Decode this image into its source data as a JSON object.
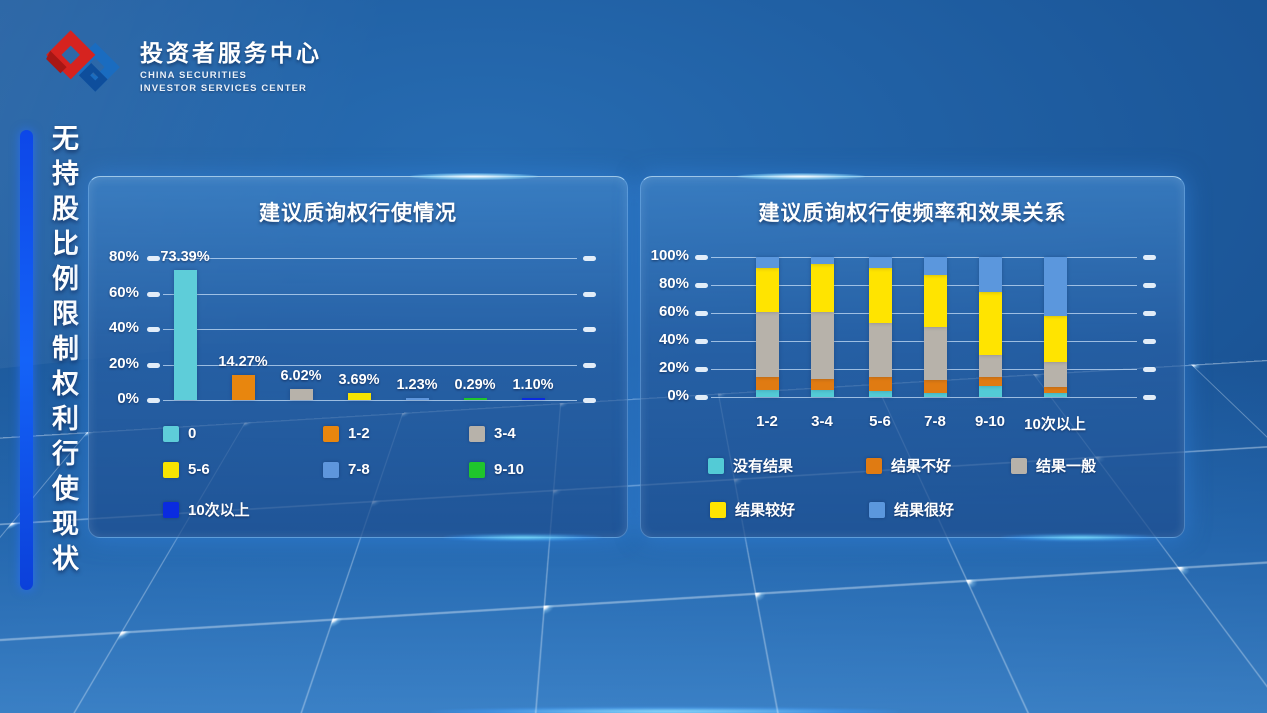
{
  "brand": {
    "title": "投资者服务中心",
    "subtitle_line1": "CHINA SECURITIES",
    "subtitle_line2": "INVESTOR SERVICES CENTER"
  },
  "sidebar": {
    "vertical_title": "无持股比例限制权利行使现状"
  },
  "colors": {
    "accent_bar": "#0D47E8",
    "panel_blue": "#2A62A7",
    "logo_red": "#D6231F",
    "logo_blue": "#1A6CC0"
  },
  "chart_data": [
    {
      "type": "bar",
      "title": "建议质询权行使情况",
      "categories": [
        "0",
        "1-2",
        "3-4",
        "5-6",
        "7-8",
        "9-10",
        "10次以上"
      ],
      "values": [
        73.39,
        14.27,
        6.02,
        3.69,
        1.23,
        0.29,
        1.1
      ],
      "value_labels": [
        "73.39%",
        "14.27%",
        "6.02%",
        "3.69%",
        "1.23%",
        "0.29%",
        "1.10%"
      ],
      "colors": [
        "#5ECDD9",
        "#E8860E",
        "#B7B2AA",
        "#F7E301",
        "#5E96DC",
        "#1FC52C",
        "#0A2BE0"
      ],
      "y_ticks": [
        80,
        60,
        40,
        20,
        0
      ],
      "y_tick_labels": [
        "80%",
        "60%",
        "40%",
        "20%",
        "0%"
      ],
      "ylim": [
        0,
        80
      ],
      "grid": true,
      "legend_position": "bottom"
    },
    {
      "type": "stacked-bar-percent",
      "title": "建议质询权行使频率和效果关系",
      "categories": [
        "1-2",
        "3-4",
        "5-6",
        "7-8",
        "9-10",
        "10次以上"
      ],
      "series": [
        {
          "name": "没有结果",
          "color": "#53CBD6",
          "values": [
            5,
            5,
            4,
            3,
            8,
            3
          ]
        },
        {
          "name": "结果不好",
          "color": "#E07B12",
          "values": [
            9,
            8,
            10,
            9,
            6,
            4
          ]
        },
        {
          "name": "结果一般",
          "color": "#B7B2AA",
          "values": [
            47,
            48,
            39,
            38,
            16,
            18
          ]
        },
        {
          "name": "结果较好",
          "color": "#FFE400",
          "values": [
            31,
            34,
            39,
            37,
            45,
            33
          ]
        },
        {
          "name": "结果很好",
          "color": "#5B97DD",
          "values": [
            8,
            5,
            8,
            13,
            25,
            42
          ]
        }
      ],
      "y_ticks": [
        100,
        80,
        60,
        40,
        20,
        0
      ],
      "y_tick_labels": [
        "100%",
        "80%",
        "60%",
        "40%",
        "20%",
        "0%"
      ],
      "ylim": [
        0,
        100
      ],
      "grid": true,
      "legend_position": "bottom"
    }
  ]
}
